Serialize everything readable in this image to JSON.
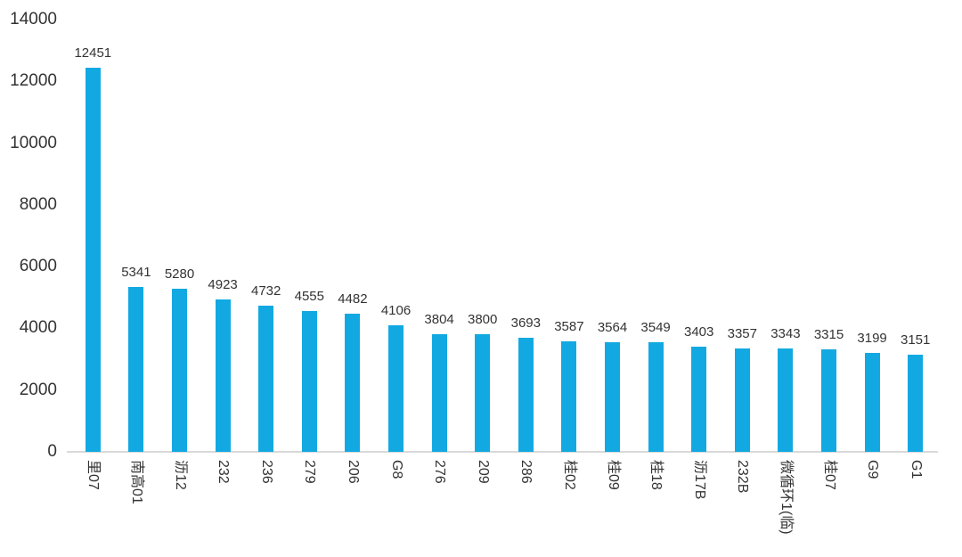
{
  "chart_data": {
    "type": "bar",
    "title": "",
    "xlabel": "",
    "ylabel": "",
    "categories": [
      "里07",
      "南高01",
      "沥12",
      "232",
      "236",
      "279",
      "206",
      "G8",
      "276",
      "209",
      "286",
      "桂02",
      "桂09",
      "桂18",
      "沥17B",
      "232B",
      "微循环1(临)",
      "桂07",
      "G9",
      "G1"
    ],
    "values": [
      12451,
      5341,
      5280,
      4923,
      4732,
      4555,
      4482,
      4106,
      3804,
      3800,
      3693,
      3587,
      3564,
      3549,
      3403,
      3357,
      3343,
      3315,
      3199,
      3151
    ],
    "ylim": [
      0,
      14000
    ],
    "y_ticks": [
      0,
      2000,
      4000,
      6000,
      8000,
      10000,
      12000,
      14000
    ],
    "grid": false,
    "legend_position": "none",
    "data_labels_visible": true,
    "x_label_rotation_deg": 90,
    "colors": {
      "bar": "#12a9e2",
      "text": "#333333",
      "axis_line": "#d9d9d9",
      "background": "#ffffff"
    }
  }
}
